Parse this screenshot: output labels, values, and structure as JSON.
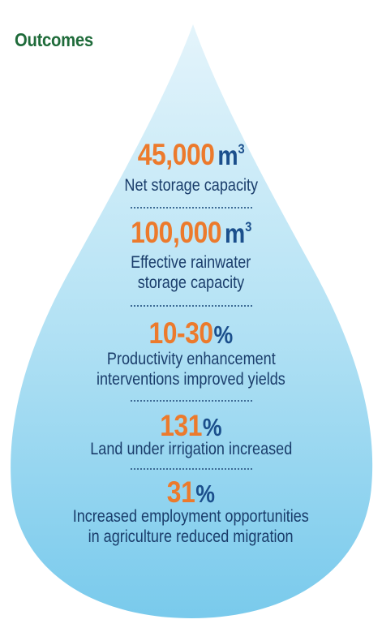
{
  "title": "Outcomes",
  "colors": {
    "title_green": "#1f6b3a",
    "number_orange": "#ec7a2c",
    "unit_blue": "#1b4f8c",
    "text_navy": "#1a3d6b",
    "drop_top": "#dff2fb",
    "drop_bottom": "#7fcdee"
  },
  "outcomes": [
    {
      "number": "45,000",
      "unit": "m",
      "unit_sup": "3",
      "lines": [
        "Net storage capacity"
      ]
    },
    {
      "number": "100,000",
      "unit": "m",
      "unit_sup": "3",
      "lines": [
        "Effective rainwater",
        "storage capacity"
      ]
    },
    {
      "number": "10-30",
      "unit": "%",
      "lines": [
        "Productivity enhancement",
        "interventions improved yields"
      ]
    },
    {
      "number": "131",
      "unit": "%",
      "lines": [
        "Land under irrigation increased"
      ]
    },
    {
      "number": "31",
      "unit": "%",
      "lines": [
        "Increased employment opportunities",
        "in agriculture reduced migration"
      ]
    }
  ]
}
